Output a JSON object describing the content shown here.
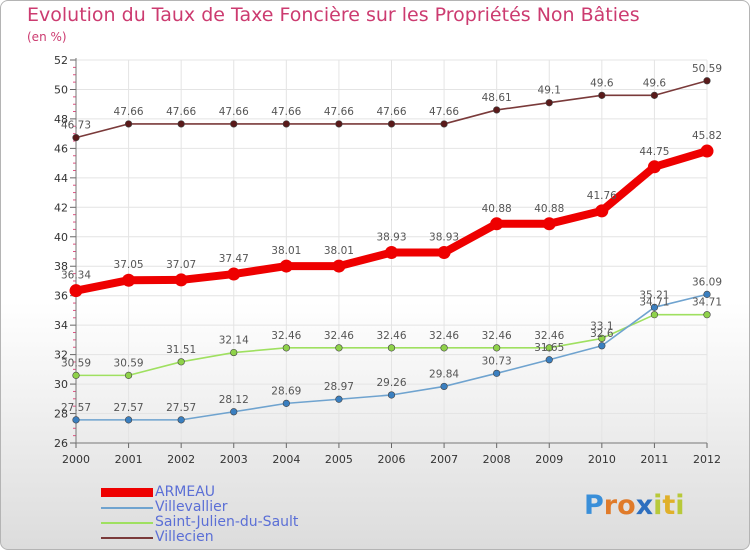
{
  "title": "Evolution du Taux de Taxe Foncière sur les Propriétés Non Bâties",
  "subtitle": "(en %)",
  "logo": {
    "text": "Proxiti",
    "letters": [
      {
        "ch": "P",
        "color": "#3a8fd9"
      },
      {
        "ch": "r",
        "color": "#e07b2a"
      },
      {
        "ch": "o",
        "color": "#e07b2a"
      },
      {
        "ch": "x",
        "color": "#2e6fbf"
      },
      {
        "ch": "i",
        "color": "#b8c93a"
      },
      {
        "ch": "t",
        "color": "#e0b02a"
      },
      {
        "ch": "i",
        "color": "#b8c93a"
      }
    ]
  },
  "legend": [
    {
      "name": "ARMEAU",
      "color": "#ee0000"
    },
    {
      "name": "Villevallier",
      "color": "#6fa3cf"
    },
    {
      "name": "Saint-Julien-du-Sault",
      "color": "#9fe060"
    },
    {
      "name": "Villecien",
      "color": "#7a3a3a"
    }
  ],
  "chart_data": {
    "type": "line",
    "title": "Evolution du Taux de Taxe Foncière sur les Propriétés Non Bâties",
    "ylabel": "(en %)",
    "x": [
      "2000",
      "2001",
      "2002",
      "2003",
      "2004",
      "2005",
      "2006",
      "2007",
      "2008",
      "2009",
      "2010",
      "2011",
      "2012"
    ],
    "ylim": [
      26,
      52
    ],
    "yticks": [
      26,
      28,
      30,
      32,
      34,
      36,
      38,
      40,
      42,
      44,
      46,
      48,
      50,
      52
    ],
    "grid": true,
    "legend_position": "bottom-left",
    "series": [
      {
        "name": "Villecien",
        "color": "#7a3a3a",
        "markerColor": "#5a1a1a",
        "values": [
          46.73,
          47.66,
          47.66,
          47.66,
          47.66,
          47.66,
          47.66,
          47.66,
          48.61,
          49.1,
          49.6,
          49.6,
          50.59
        ],
        "labels": [
          "46.73",
          "47.66",
          "47.66",
          "47.66",
          "47.66",
          "47.66",
          "47.66",
          "47.66",
          "48.61",
          "49.1",
          "49.6",
          "49.6",
          "50.59"
        ]
      },
      {
        "name": "ARMEAU",
        "color": "#ee0000",
        "markerColor": "#ee0000",
        "values": [
          36.34,
          37.05,
          37.07,
          37.47,
          38.01,
          38.01,
          38.93,
          38.93,
          40.88,
          40.88,
          41.76,
          44.75,
          45.82
        ],
        "labels": [
          "36.34",
          "37.05",
          "37.07",
          "37.47",
          "38.01",
          "38.01",
          "38.93",
          "38.93",
          "40.88",
          "40.88",
          "41.76",
          "44.75",
          "45.82"
        ]
      },
      {
        "name": "Saint-Julien-du-Sault",
        "color": "#9fe060",
        "markerColor": "#8fd24a",
        "values": [
          30.59,
          30.59,
          31.51,
          32.14,
          32.46,
          32.46,
          32.46,
          32.46,
          32.46,
          32.46,
          33.1,
          34.71,
          34.71
        ],
        "labels": [
          "30.59",
          "30.59",
          "31.51",
          "32.14",
          "32.46",
          "32.46",
          "32.46",
          "32.46",
          "32.46",
          "32.46",
          "33.1",
          "34.71",
          "34.71"
        ]
      },
      {
        "name": "Villevallier",
        "color": "#6fa3cf",
        "markerColor": "#3a7fc0",
        "values": [
          27.57,
          27.57,
          27.57,
          28.12,
          28.69,
          28.97,
          29.26,
          29.84,
          30.73,
          31.65,
          32.6,
          35.21,
          36.09
        ],
        "labels": [
          "27.57",
          "27.57",
          "27.57",
          "28.12",
          "28.69",
          "28.97",
          "29.26",
          "29.84",
          "30.73",
          "31.65",
          "32.6",
          "35.21",
          "36.09"
        ]
      }
    ]
  }
}
